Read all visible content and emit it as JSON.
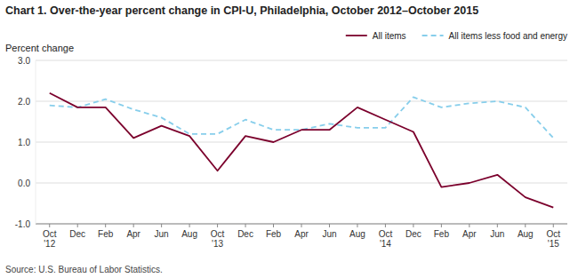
{
  "chart_data": {
    "type": "line",
    "title": "Chart 1. Over-the-year percent change in CPI-U,  Philadelphia, October 2012–October 2015",
    "y_label": "Percent change",
    "source": "Source: U.S. Bureau of Labor Statistics.",
    "categories": [
      "Oct\n'12",
      "Dec",
      "Feb",
      "Apr",
      "Jun",
      "Aug",
      "Oct\n'13",
      "Dec",
      "Feb",
      "Apr",
      "Jun",
      "Aug",
      "Oct\n'14",
      "Dec",
      "Feb",
      "Apr",
      "Jun",
      "Aug",
      "Oct\n'15"
    ],
    "series": [
      {
        "name": "All items",
        "color": "#7B002C",
        "line_style": "solid",
        "values": [
          2.2,
          1.85,
          1.85,
          1.1,
          1.4,
          1.15,
          0.3,
          1.15,
          1.0,
          1.3,
          1.3,
          1.85,
          1.55,
          1.25,
          -0.1,
          0.0,
          0.2,
          -0.35,
          -0.6
        ]
      },
      {
        "name": "All items less food and energy",
        "color": "#87CEEB",
        "line_style": "dashed",
        "values": [
          1.9,
          1.85,
          2.05,
          1.8,
          1.6,
          1.2,
          1.2,
          1.55,
          1.3,
          1.3,
          1.45,
          1.35,
          1.35,
          2.1,
          1.85,
          1.95,
          2.0,
          1.85,
          1.1
        ]
      }
    ],
    "ylim": [
      -1.0,
      3.0
    ],
    "yticks": [
      {
        "value": -1.0,
        "label": "-1.0"
      },
      {
        "value": 0.0,
        "label": "0.0"
      },
      {
        "value": 1.0,
        "label": "1.0"
      },
      {
        "value": 2.0,
        "label": "2.0"
      },
      {
        "value": 3.0,
        "label": "3.0"
      }
    ],
    "grid": true,
    "legend": "top"
  }
}
